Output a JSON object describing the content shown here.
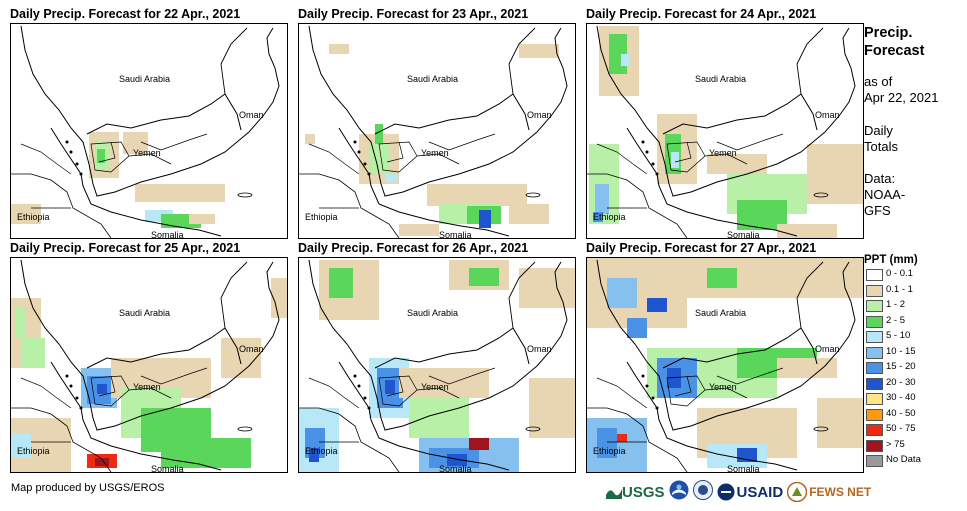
{
  "panels": [
    {
      "title": "Daily Precip. Forecast for 22 Apr., 2021"
    },
    {
      "title": "Daily Precip. Forecast for 23 Apr., 2021"
    },
    {
      "title": "Daily Precip. Forecast for 24 Apr., 2021"
    },
    {
      "title": "Daily Precip. Forecast for 25 Apr., 2021"
    },
    {
      "title": "Daily Precip. Forecast for 26 Apr., 2021"
    },
    {
      "title": "Daily Precip. Forecast for 27 Apr., 2021"
    }
  ],
  "map_labels": {
    "saudi": "Saudi Arabia",
    "oman": "Oman",
    "yemen": "Yemen",
    "ethiopia": "Ethiopia",
    "somalia": "Somalia"
  },
  "side": {
    "title_line1": "Precip.",
    "title_line2": "Forecast",
    "asof_line1": "as of",
    "asof_line2": "Apr 22, 2021",
    "daily_line1": "Daily",
    "daily_line2": "Totals",
    "data_line1": "Data:",
    "data_line2": "NOAA-",
    "data_line3": "GFS"
  },
  "legend": {
    "title": "PPT (mm)",
    "items": [
      {
        "label": "0 - 0.1",
        "color": "#ffffff"
      },
      {
        "label": "0.1 - 1",
        "color": "#e8d6b2"
      },
      {
        "label": "1 - 2",
        "color": "#b8f0a8"
      },
      {
        "label": "2 - 5",
        "color": "#5ad65a"
      },
      {
        "label": "5 - 10",
        "color": "#b8e8f8"
      },
      {
        "label": "10 - 15",
        "color": "#86c0ee"
      },
      {
        "label": "15 - 20",
        "color": "#4a92e6"
      },
      {
        "label": "20 - 30",
        "color": "#1f56d0"
      },
      {
        "label": "30 - 40",
        "color": "#ffe48a"
      },
      {
        "label": "40 - 50",
        "color": "#ff9a10"
      },
      {
        "label": "50 - 75",
        "color": "#ee2a10"
      },
      {
        "label": "> 75",
        "color": "#a0141e"
      },
      {
        "label": "No Data",
        "color": "#9a9a9a"
      }
    ]
  },
  "credit": "Map produced by USGS/EROS",
  "logos": {
    "usgs": "USGS",
    "usaid": "USAID",
    "fews": "FEWS NET"
  }
}
